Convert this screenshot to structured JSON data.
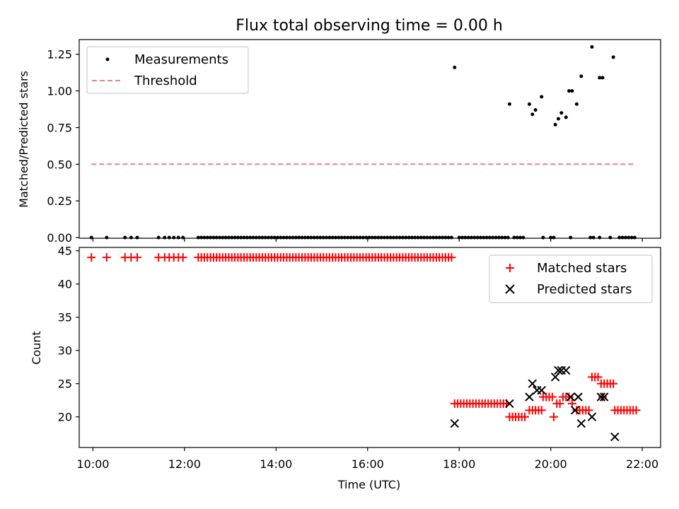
{
  "title": "Flux total observing time = 0.00 h",
  "colors": {
    "measurement": "#000000",
    "threshold": "#f08080",
    "matched": "#ff0000",
    "predicted": "#000000"
  },
  "chart_data": [
    {
      "type": "scatter",
      "panel": "top",
      "title": "Flux total observing time = 0.00 h",
      "xlabel": "",
      "ylabel": "Matched/Predicted stars",
      "xlim": [
        "09:42",
        "22:24"
      ],
      "ylim": [
        0,
        1.35
      ],
      "yticks": [
        0.0,
        0.25,
        0.5,
        0.75,
        1.0,
        1.25
      ],
      "ytick_labels": [
        "0.00",
        "0.25",
        "0.50",
        "0.75",
        "1.00",
        "1.25"
      ],
      "legend": {
        "position": "top-left",
        "entries": [
          "Measurements",
          "Threshold"
        ]
      },
      "grid": false,
      "series": [
        {
          "name": "Measurements",
          "marker": "dot",
          "zero_points_x": [
            "09:58",
            "10:18",
            "10:42",
            "10:50",
            "10:58",
            "11:26",
            "11:34",
            "11:40",
            "11:46",
            "11:52",
            "11:58",
            "12:18",
            "12:22",
            "12:26",
            "12:30",
            "12:34",
            "12:38",
            "12:42",
            "12:46",
            "12:50",
            "12:54",
            "12:58",
            "13:02",
            "13:06",
            "13:10",
            "13:14",
            "13:18",
            "13:22",
            "13:26",
            "13:30",
            "13:34",
            "13:38",
            "13:42",
            "13:46",
            "13:50",
            "13:54",
            "13:58",
            "14:02",
            "14:06",
            "14:10",
            "14:14",
            "14:18",
            "14:22",
            "14:26",
            "14:30",
            "14:34",
            "14:38",
            "14:42",
            "14:46",
            "14:50",
            "14:54",
            "14:58",
            "15:02",
            "15:06",
            "15:10",
            "15:14",
            "15:18",
            "15:22",
            "15:26",
            "15:30",
            "15:34",
            "15:38",
            "15:42",
            "15:46",
            "15:50",
            "15:54",
            "15:58",
            "16:02",
            "16:06",
            "16:10",
            "16:14",
            "16:18",
            "16:22",
            "16:26",
            "16:30",
            "16:34",
            "16:38",
            "16:42",
            "16:46",
            "16:50",
            "16:54",
            "16:58",
            "17:02",
            "17:06",
            "17:10",
            "17:14",
            "17:18",
            "17:22",
            "17:26",
            "17:30",
            "17:34",
            "17:38",
            "17:42",
            "17:46",
            "17:50",
            "18:00",
            "18:04",
            "18:08",
            "18:12",
            "18:16",
            "18:20",
            "18:24",
            "18:28",
            "18:32",
            "18:36",
            "18:40",
            "18:44",
            "18:48",
            "18:52",
            "18:56",
            "19:00",
            "19:04",
            "19:12",
            "19:16",
            "19:20",
            "19:24",
            "19:50",
            "20:00",
            "20:04",
            "20:26",
            "20:52",
            "20:56",
            "21:04",
            "21:18",
            "21:30",
            "21:34",
            "21:38",
            "21:42",
            "21:46",
            "21:50"
          ],
          "points": [
            {
              "x": "17:54",
              "y": 1.16
            },
            {
              "x": "19:06",
              "y": 0.91
            },
            {
              "x": "19:32",
              "y": 0.91
            },
            {
              "x": "19:36",
              "y": 0.84
            },
            {
              "x": "19:40",
              "y": 0.87
            },
            {
              "x": "19:48",
              "y": 0.96
            },
            {
              "x": "20:06",
              "y": 0.77
            },
            {
              "x": "20:10",
              "y": 0.81
            },
            {
              "x": "20:14",
              "y": 0.85
            },
            {
              "x": "20:20",
              "y": 0.82
            },
            {
              "x": "20:24",
              "y": 1.0
            },
            {
              "x": "20:28",
              "y": 1.0
            },
            {
              "x": "20:34",
              "y": 0.91
            },
            {
              "x": "20:40",
              "y": 1.1
            },
            {
              "x": "20:54",
              "y": 1.3
            },
            {
              "x": "21:04",
              "y": 1.09
            },
            {
              "x": "21:08",
              "y": 1.09
            },
            {
              "x": "21:22",
              "y": 1.23
            }
          ]
        },
        {
          "name": "Threshold",
          "style": "dashed",
          "x": [
            "09:58",
            "21:50"
          ],
          "y": [
            0.5,
            0.5
          ]
        }
      ]
    },
    {
      "type": "scatter",
      "panel": "bottom",
      "xlabel": "Time (UTC)",
      "ylabel": "Count",
      "xlim": [
        "09:42",
        "22:24"
      ],
      "ylim": [
        15.5,
        45.5
      ],
      "xticks": [
        "10:00",
        "12:00",
        "14:00",
        "16:00",
        "18:00",
        "20:00",
        "22:00"
      ],
      "yticks": [
        20,
        25,
        30,
        35,
        40,
        45
      ],
      "ytick_labels": [
        "20",
        "25",
        "30",
        "35",
        "40",
        "45"
      ],
      "legend": {
        "position": "top-right",
        "entries": [
          "Matched stars",
          "Predicted stars"
        ]
      },
      "grid": false,
      "series": [
        {
          "name": "Matched stars",
          "marker": "plus",
          "groups": [
            {
              "y": 44,
              "x": [
                "09:58",
                "10:18",
                "10:42",
                "10:50",
                "10:58",
                "11:26",
                "11:34",
                "11:40",
                "11:46",
                "11:52",
                "11:58",
                "12:18",
                "12:22",
                "12:26",
                "12:30",
                "12:34",
                "12:38",
                "12:42",
                "12:46",
                "12:50",
                "12:54",
                "12:58",
                "13:02",
                "13:06",
                "13:10",
                "13:14",
                "13:18",
                "13:22",
                "13:26",
                "13:30",
                "13:34",
                "13:38",
                "13:42",
                "13:46",
                "13:50",
                "13:54",
                "13:58",
                "14:02",
                "14:06",
                "14:10",
                "14:14",
                "14:18",
                "14:22",
                "14:26",
                "14:30",
                "14:34",
                "14:38",
                "14:42",
                "14:46",
                "14:50",
                "14:54",
                "14:58",
                "15:02",
                "15:06",
                "15:10",
                "15:14",
                "15:18",
                "15:22",
                "15:26",
                "15:30",
                "15:34",
                "15:38",
                "15:42",
                "15:46",
                "15:50",
                "15:54",
                "15:58",
                "16:02",
                "16:06",
                "16:10",
                "16:14",
                "16:18",
                "16:22",
                "16:26",
                "16:30",
                "16:34",
                "16:38",
                "16:42",
                "16:46",
                "16:50",
                "16:54",
                "16:58",
                "17:02",
                "17:06",
                "17:10",
                "17:14",
                "17:18",
                "17:22",
                "17:26",
                "17:30",
                "17:34",
                "17:38",
                "17:42",
                "17:46",
                "17:50"
              ]
            },
            {
              "y": 22,
              "x": [
                "17:54",
                "17:58",
                "18:02",
                "18:06",
                "18:10",
                "18:14",
                "18:18",
                "18:22",
                "18:26",
                "18:30",
                "18:34",
                "18:38",
                "18:42",
                "18:46",
                "18:50",
                "18:54",
                "18:58",
                "19:02"
              ]
            },
            {
              "y": 20,
              "x": [
                "19:06",
                "19:10",
                "19:14",
                "19:18",
                "19:22",
                "19:26"
              ]
            },
            {
              "y": 21,
              "x": [
                "19:32",
                "19:36",
                "19:40",
                "19:44",
                "19:48"
              ]
            },
            {
              "y": 23,
              "x": [
                "19:50",
                "19:54",
                "19:58",
                "20:02"
              ]
            },
            {
              "y": 20,
              "x": [
                "20:04"
              ]
            },
            {
              "y": 22,
              "x": [
                "20:08",
                "20:12"
              ]
            },
            {
              "y": 23,
              "x": [
                "20:16",
                "20:20",
                "20:24"
              ]
            },
            {
              "y": 22,
              "x": [
                "20:28"
              ]
            },
            {
              "y": 21,
              "x": [
                "20:34",
                "20:38",
                "20:42",
                "20:46",
                "20:50"
              ]
            },
            {
              "y": 26,
              "x": [
                "20:54",
                "20:58",
                "21:02"
              ]
            },
            {
              "y": 25,
              "x": [
                "21:06",
                "21:10",
                "21:14",
                "21:18",
                "21:22"
              ]
            },
            {
              "y": 23,
              "x": [
                "21:08"
              ]
            },
            {
              "y": 21,
              "x": [
                "21:24",
                "21:28",
                "21:32",
                "21:36",
                "21:40",
                "21:44",
                "21:48",
                "21:52"
              ]
            }
          ]
        },
        {
          "name": "Predicted stars",
          "marker": "x",
          "points": [
            {
              "x": "17:54",
              "y": 19
            },
            {
              "x": "19:06",
              "y": 22
            },
            {
              "x": "19:32",
              "y": 23
            },
            {
              "x": "19:36",
              "y": 25
            },
            {
              "x": "19:42",
              "y": 24
            },
            {
              "x": "19:48",
              "y": 24
            },
            {
              "x": "20:06",
              "y": 26
            },
            {
              "x": "20:10",
              "y": 27
            },
            {
              "x": "20:14",
              "y": 27
            },
            {
              "x": "20:20",
              "y": 27
            },
            {
              "x": "20:26",
              "y": 23
            },
            {
              "x": "20:32",
              "y": 21
            },
            {
              "x": "20:36",
              "y": 23
            },
            {
              "x": "20:40",
              "y": 19
            },
            {
              "x": "20:54",
              "y": 20
            },
            {
              "x": "21:06",
              "y": 23
            },
            {
              "x": "21:10",
              "y": 23
            },
            {
              "x": "21:24",
              "y": 17
            }
          ]
        }
      ]
    }
  ]
}
